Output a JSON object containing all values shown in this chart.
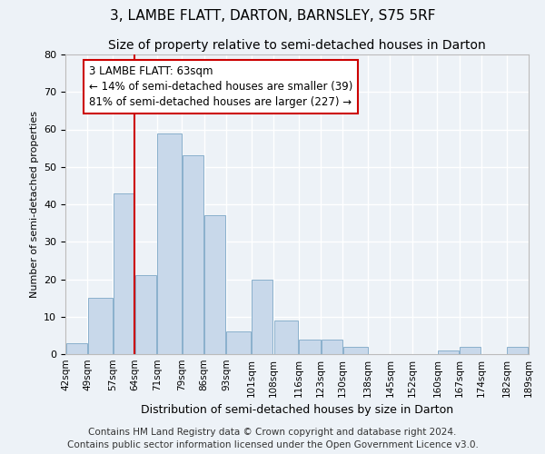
{
  "title": "3, LAMBE FLATT, DARTON, BARNSLEY, S75 5RF",
  "subtitle": "Size of property relative to semi-detached houses in Darton",
  "xlabel": "Distribution of semi-detached houses by size in Darton",
  "ylabel": "Number of semi-detached properties",
  "bar_color": "#c8d8ea",
  "bar_edge_color": "#8ab0cc",
  "background_color": "#edf2f7",
  "grid_color": "#ffffff",
  "annotation_line1": "3 LAMBE FLATT: 63sqm",
  "annotation_line2": "← 14% of semi-detached houses are smaller (39)",
  "annotation_line3": "81% of semi-detached houses are larger (227) →",
  "vline_x": 64,
  "vline_color": "#cc0000",
  "bin_edges": [
    42,
    49,
    57,
    64,
    71,
    79,
    86,
    93,
    101,
    108,
    116,
    123,
    130,
    138,
    145,
    152,
    160,
    167,
    174,
    182,
    189
  ],
  "bin_labels": [
    "42sqm",
    "49sqm",
    "57sqm",
    "64sqm",
    "71sqm",
    "79sqm",
    "86sqm",
    "93sqm",
    "101sqm",
    "108sqm",
    "116sqm",
    "123sqm",
    "130sqm",
    "138sqm",
    "145sqm",
    "152sqm",
    "160sqm",
    "167sqm",
    "174sqm",
    "182sqm",
    "189sqm"
  ],
  "counts": [
    3,
    15,
    43,
    21,
    59,
    53,
    37,
    6,
    20,
    9,
    4,
    4,
    2,
    0,
    0,
    0,
    1,
    2,
    0,
    2
  ],
  "ylim": [
    0,
    80
  ],
  "yticks": [
    0,
    10,
    20,
    30,
    40,
    50,
    60,
    70,
    80
  ],
  "footer": "Contains HM Land Registry data © Crown copyright and database right 2024.\nContains public sector information licensed under the Open Government Licence v3.0.",
  "footer_fontsize": 7.5,
  "title_fontsize": 11,
  "subtitle_fontsize": 10,
  "xlabel_fontsize": 9,
  "ylabel_fontsize": 8
}
